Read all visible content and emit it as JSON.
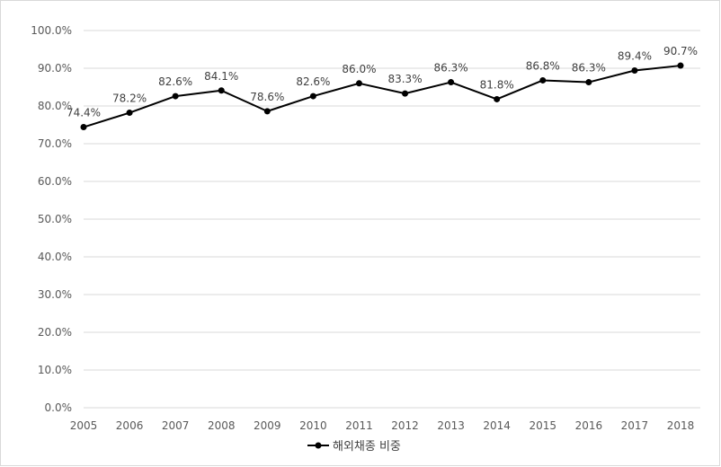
{
  "chart_data": {
    "type": "line",
    "title": "",
    "xlabel": "",
    "ylabel": "",
    "x": [
      "2005",
      "2006",
      "2007",
      "2008",
      "2009",
      "2010",
      "2011",
      "2012",
      "2013",
      "2014",
      "2015",
      "2016",
      "2017",
      "2018"
    ],
    "series": [
      {
        "name": "해외채종 비중",
        "values": [
          74.4,
          78.2,
          82.6,
          84.1,
          78.6,
          82.6,
          86.0,
          83.3,
          86.3,
          81.8,
          86.8,
          86.3,
          89.4,
          90.7
        ],
        "labels": [
          "74.4%",
          "78.2%",
          "82.6%",
          "84.1%",
          "78.6%",
          "82.6%",
          "86.0%",
          "83.3%",
          "86.3%",
          "81.8%",
          "86.8%",
          "86.3%",
          "89.4%",
          "90.7%"
        ],
        "color": "#000000",
        "marker": "circle"
      }
    ],
    "ylim": [
      0,
      100
    ],
    "yticks": [
      0,
      10,
      20,
      30,
      40,
      50,
      60,
      70,
      80,
      90,
      100
    ],
    "ytick_labels": [
      "0.0%",
      "10.0%",
      "20.0%",
      "30.0%",
      "40.0%",
      "50.0%",
      "60.0%",
      "70.0%",
      "80.0%",
      "90.0%",
      "100.0%"
    ],
    "grid": true,
    "gridline_color": "#d9d9d9",
    "legend_position": "bottom"
  }
}
